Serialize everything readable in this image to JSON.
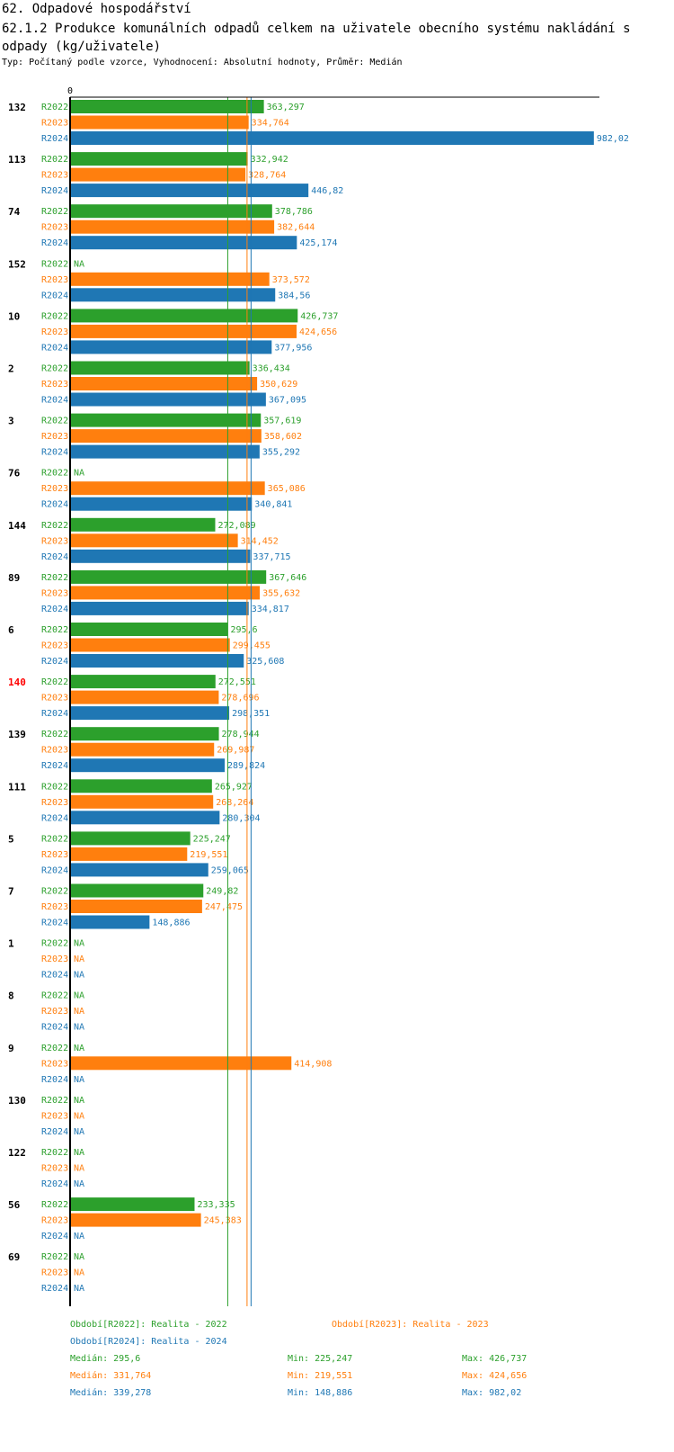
{
  "header": {
    "title_line1": "62. Odpadové hospodářství",
    "title_line2": "62.1.2 Produkce komunálních odpadů celkem na uživatele obecního systému nakládání s odpady (kg/uživatele)",
    "subtitle": "Typ: Počítaný podle vzorce, Vyhodnocení: Absolutní hodnoty, Průměr: Medián"
  },
  "colors": {
    "R2022": "#2ca02c",
    "R2023": "#ff7f0e",
    "R2024": "#1f77b4",
    "highlight": "#ff0000",
    "axis": "#000000"
  },
  "chart_data": {
    "type": "bar",
    "orientation": "horizontal",
    "axis_zero_label": "0",
    "xlim": [
      0,
      1000
    ],
    "na_label": "NA",
    "series_names": [
      "R2022",
      "R2023",
      "R2024"
    ],
    "groups": [
      {
        "label": "132",
        "highlight": false,
        "values": [
          "363,297",
          "334,764",
          "982,02"
        ]
      },
      {
        "label": "113",
        "highlight": false,
        "values": [
          "332,942",
          "328,764",
          "446,82"
        ]
      },
      {
        "label": "74",
        "highlight": false,
        "values": [
          "378,786",
          "382,644",
          "425,174"
        ]
      },
      {
        "label": "152",
        "highlight": false,
        "values": [
          null,
          "373,572",
          "384,56"
        ]
      },
      {
        "label": "10",
        "highlight": false,
        "values": [
          "426,737",
          "424,656",
          "377,956"
        ]
      },
      {
        "label": "2",
        "highlight": false,
        "values": [
          "336,434",
          "350,629",
          "367,095"
        ]
      },
      {
        "label": "3",
        "highlight": false,
        "values": [
          "357,619",
          "358,602",
          "355,292"
        ]
      },
      {
        "label": "76",
        "highlight": false,
        "values": [
          null,
          "365,086",
          "340,841"
        ]
      },
      {
        "label": "144",
        "highlight": false,
        "values": [
          "272,089",
          "314,452",
          "337,715"
        ]
      },
      {
        "label": "89",
        "highlight": false,
        "values": [
          "367,646",
          "355,632",
          "334,817"
        ]
      },
      {
        "label": "6",
        "highlight": false,
        "values": [
          "295,6",
          "299,455",
          "325,608"
        ]
      },
      {
        "label": "140",
        "highlight": true,
        "values": [
          "272,551",
          "278,696",
          "298,351"
        ]
      },
      {
        "label": "139",
        "highlight": false,
        "values": [
          "278,944",
          "269,987",
          "289,824"
        ]
      },
      {
        "label": "111",
        "highlight": false,
        "values": [
          "265,927",
          "268,264",
          "280,304"
        ]
      },
      {
        "label": "5",
        "highlight": false,
        "values": [
          "225,247",
          "219,551",
          "259,065"
        ]
      },
      {
        "label": "7",
        "highlight": false,
        "values": [
          "249,82",
          "247,475",
          "148,886"
        ]
      },
      {
        "label": "1",
        "highlight": false,
        "values": [
          null,
          null,
          null
        ]
      },
      {
        "label": "8",
        "highlight": false,
        "values": [
          null,
          null,
          null
        ]
      },
      {
        "label": "9",
        "highlight": false,
        "values": [
          null,
          "414,908",
          null
        ]
      },
      {
        "label": "130",
        "highlight": false,
        "values": [
          null,
          null,
          null
        ]
      },
      {
        "label": "122",
        "highlight": false,
        "values": [
          null,
          null,
          null
        ]
      },
      {
        "label": "56",
        "highlight": false,
        "values": [
          "233,335",
          "245,383",
          null
        ]
      },
      {
        "label": "69",
        "highlight": false,
        "values": [
          null,
          null,
          null
        ]
      }
    ],
    "median_lines": [
      {
        "series": "R2022",
        "value": 295.6
      },
      {
        "series": "R2023",
        "value": 331.764
      },
      {
        "series": "R2024",
        "value": 339.278
      }
    ]
  },
  "legend": {
    "period_2022": "Období[R2022]: Realita - 2022",
    "period_2023": "Období[R2023]: Realita - 2023",
    "period_2024": "Období[R2024]: Realita - 2024",
    "stats": [
      {
        "median": "Medián: 295,6",
        "min": "Min: 225,247",
        "max": "Max: 426,737"
      },
      {
        "median": "Medián: 331,764",
        "min": "Min: 219,551",
        "max": "Max: 424,656"
      },
      {
        "median": "Medián: 339,278",
        "min": "Min: 148,886",
        "max": "Max: 982,02"
      }
    ]
  }
}
